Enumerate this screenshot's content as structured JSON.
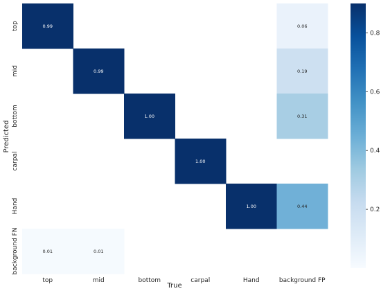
{
  "chart_data": {
    "type": "heatmap",
    "xlabel": "True",
    "ylabel": "Predicted",
    "x_categories": [
      "top",
      "mid",
      "bottom",
      "carpal",
      "Hand",
      "background FP"
    ],
    "y_categories": [
      "top",
      "mid",
      "bottom",
      "carpal",
      "Hand",
      "background FN"
    ],
    "cells": [
      {
        "row": 0,
        "col": 0,
        "value": 0.99,
        "label": "0.99"
      },
      {
        "row": 0,
        "col": 5,
        "value": 0.06,
        "label": "0.06"
      },
      {
        "row": 1,
        "col": 1,
        "value": 0.99,
        "label": "0.99"
      },
      {
        "row": 1,
        "col": 5,
        "value": 0.19,
        "label": "0.19"
      },
      {
        "row": 2,
        "col": 2,
        "value": 1.0,
        "label": "1.00"
      },
      {
        "row": 2,
        "col": 5,
        "value": 0.31,
        "label": "0.31"
      },
      {
        "row": 3,
        "col": 3,
        "value": 1.0,
        "label": "1.00"
      },
      {
        "row": 4,
        "col": 4,
        "value": 1.0,
        "label": "1.00"
      },
      {
        "row": 4,
        "col": 5,
        "value": 0.44,
        "label": "0.44"
      },
      {
        "row": 5,
        "col": 0,
        "value": 0.01,
        "label": "0.01"
      },
      {
        "row": 5,
        "col": 1,
        "value": 0.01,
        "label": "0.01"
      }
    ],
    "colorbar": {
      "ticks": [
        0.2,
        0.4,
        0.6,
        0.8
      ],
      "tick_labels": [
        "0.2",
        "0.4",
        "0.6",
        "0.8"
      ],
      "range": [
        0.0,
        0.9
      ]
    },
    "colormap": "Blues",
    "colors": [
      "#f7fbff",
      "#deebf7",
      "#c6dbef",
      "#9ecae1",
      "#6baed6",
      "#4292c6",
      "#2171b5",
      "#08519c",
      "#08306b"
    ],
    "text_color_dark": "#262626",
    "text_color_light": "#ffffff"
  }
}
